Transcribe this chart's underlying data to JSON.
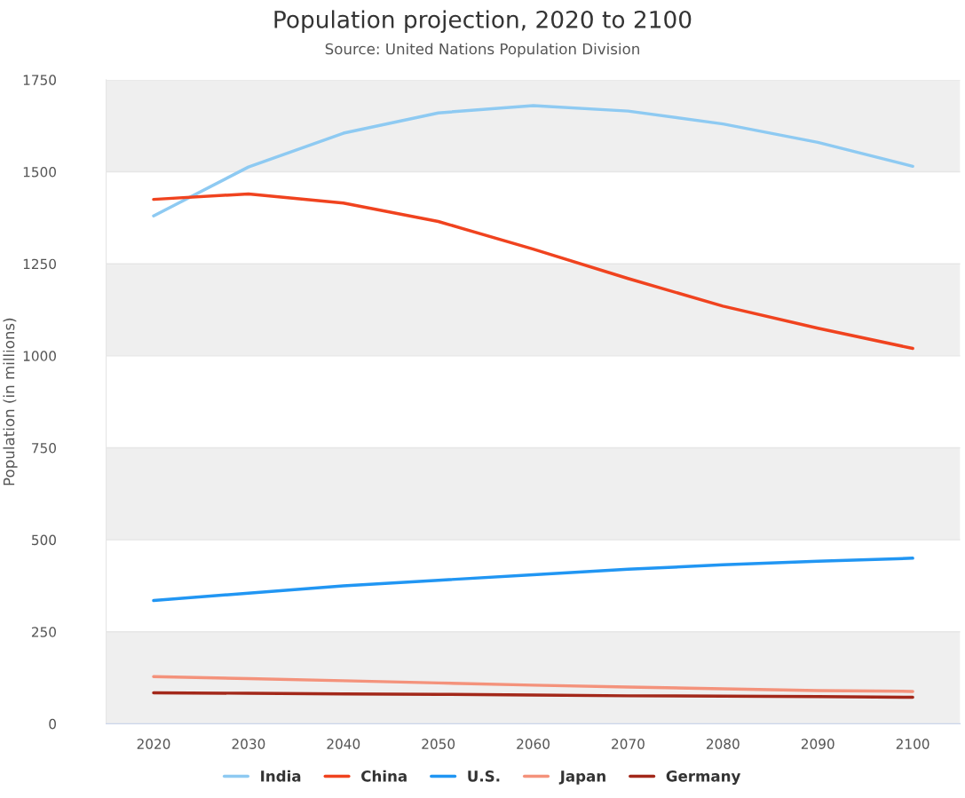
{
  "chart_data": {
    "type": "line",
    "title": "Population projection, 2020 to 2100",
    "subtitle": "Source: United Nations Population Division",
    "ylabel": "Population (in millions)",
    "categories": [
      "2020",
      "2030",
      "2040",
      "2050",
      "2060",
      "2070",
      "2080",
      "2090",
      "2100"
    ],
    "series": [
      {
        "name": "India",
        "color": "#8ecaf2",
        "values": [
          1380,
          1513,
          1605,
          1660,
          1680,
          1665,
          1630,
          1580,
          1515
        ]
      },
      {
        "name": "China",
        "color": "#f0431f",
        "values": [
          1425,
          1440,
          1415,
          1365,
          1290,
          1210,
          1135,
          1075,
          1020
        ]
      },
      {
        "name": "U.S.",
        "color": "#2196f3",
        "values": [
          335,
          355,
          375,
          390,
          405,
          420,
          432,
          442,
          450
        ]
      },
      {
        "name": "Japan",
        "color": "#f4927b",
        "values": [
          128,
          123,
          117,
          111,
          105,
          100,
          95,
          90,
          88
        ]
      },
      {
        "name": "Germany",
        "color": "#a3281a",
        "values": [
          84,
          83,
          81,
          80,
          78,
          76,
          75,
          74,
          72
        ]
      }
    ],
    "ylim": [
      0,
      1750
    ],
    "yticks": [
      0,
      250,
      500,
      750,
      1000,
      1250,
      1500,
      1750
    ],
    "bands": [
      {
        "axis": "y",
        "from": 0,
        "to": 250,
        "color": "#efefef"
      },
      {
        "axis": "y",
        "from": 500,
        "to": 750,
        "color": "#efefef"
      },
      {
        "axis": "y",
        "from": 1000,
        "to": 1250,
        "color": "#efefef"
      },
      {
        "axis": "y",
        "from": 1500,
        "to": 1750,
        "color": "#efefef"
      }
    ],
    "grid": "y",
    "legend": "bottom",
    "marker": "none",
    "line_style": "solid"
  }
}
